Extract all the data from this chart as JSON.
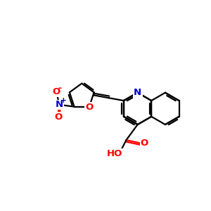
{
  "bg_color": "#ffffff",
  "bond_color": "#000000",
  "nitrogen_color": "#0000cd",
  "oxygen_color": "#ff0000",
  "bond_width": 1.6,
  "font_size": 9.5,
  "fig_size": [
    3.0,
    3.0
  ],
  "dpi": 100,
  "xlim": [
    0,
    10
  ],
  "ylim": [
    0,
    10
  ]
}
